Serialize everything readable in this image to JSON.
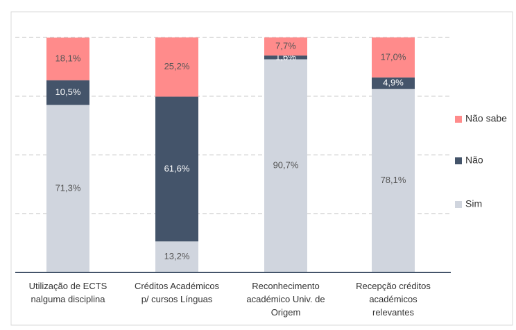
{
  "chart_data": {
    "type": "stacked_bar",
    "categories": [
      "Utilização de ECTS\nnalguma disciplina",
      "Créditos Académicos\np/ cursos Línguas",
      "Reconhecimento\nacadémico Univ. de\nOrigem",
      "Recepção créditos\nacadémicos\nrelevantes"
    ],
    "series": [
      {
        "name": "Sim",
        "color": "#d0d5de",
        "values": [
          71.3,
          13.2,
          90.7,
          78.1
        ],
        "value_labels": [
          "71,3%",
          "13,2%",
          "90,7%",
          "78,1%"
        ]
      },
      {
        "name": "Não",
        "color": "#44546a",
        "values": [
          10.5,
          61.6,
          1.6,
          4.9
        ],
        "value_labels": [
          "10,5%",
          "61,6%",
          "1,6%",
          "4,9%"
        ]
      },
      {
        "name": "Não sabe",
        "color": "#ff8b8b",
        "values": [
          18.1,
          25.2,
          7.7,
          17.0
        ],
        "value_labels": [
          "18,1%",
          "25,2%",
          "7,7%",
          "17,0%"
        ]
      }
    ],
    "ylim": [
      0,
      100
    ],
    "yticks": [
      0,
      25,
      50,
      75,
      100
    ],
    "grid": true,
    "legend": "right"
  }
}
